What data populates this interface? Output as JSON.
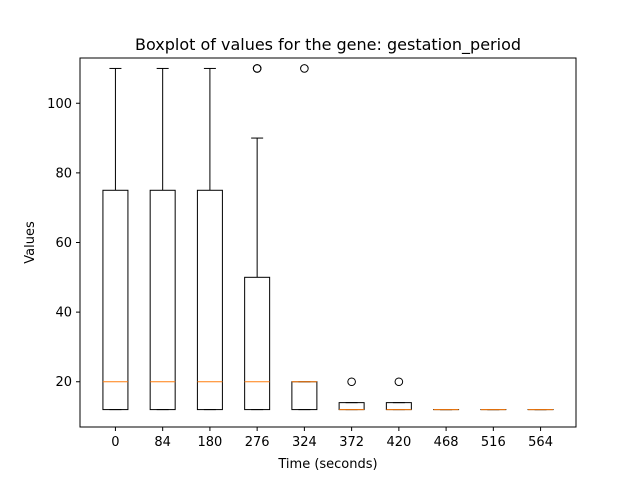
{
  "chart_data": {
    "type": "box",
    "title": "Boxplot of values for the gene: gestation_period",
    "xlabel": "Time (seconds)",
    "ylabel": "Values",
    "ylim": [
      7,
      113
    ],
    "yticks": [
      20,
      40,
      60,
      80,
      100
    ],
    "grid": false,
    "categories": [
      "0",
      "84",
      "180",
      "276",
      "324",
      "372",
      "420",
      "468",
      "516",
      "564"
    ],
    "boxes": [
      {
        "whisker_low": 12,
        "q1": 12,
        "median": 20,
        "q3": 75,
        "whisker_high": 110,
        "outliers": []
      },
      {
        "whisker_low": 12,
        "q1": 12,
        "median": 20,
        "q3": 75,
        "whisker_high": 110,
        "outliers": []
      },
      {
        "whisker_low": 12,
        "q1": 12,
        "median": 20,
        "q3": 75,
        "whisker_high": 110,
        "outliers": []
      },
      {
        "whisker_low": 12,
        "q1": 12,
        "median": 20,
        "q3": 50,
        "whisker_high": 90,
        "outliers": [
          110,
          110
        ]
      },
      {
        "whisker_low": 12,
        "q1": 12,
        "median": 20,
        "q3": 20,
        "whisker_high": 20,
        "outliers": [
          110
        ]
      },
      {
        "whisker_low": 12,
        "q1": 12,
        "median": 12,
        "q3": 14,
        "whisker_high": 14,
        "outliers": [
          20
        ]
      },
      {
        "whisker_low": 12,
        "q1": 12,
        "median": 12,
        "q3": 14,
        "whisker_high": 14,
        "outliers": [
          20
        ]
      },
      {
        "whisker_low": 12,
        "q1": 12,
        "median": 12,
        "q3": 12,
        "whisker_high": 12,
        "outliers": []
      },
      {
        "whisker_low": 12,
        "q1": 12,
        "median": 12,
        "q3": 12,
        "whisker_high": 12,
        "outliers": []
      },
      {
        "whisker_low": 12,
        "q1": 12,
        "median": 12,
        "q3": 12,
        "whisker_high": 12,
        "outliers": []
      }
    ],
    "colors": {
      "box": "#000000",
      "median": "#ff7f0e",
      "outlier": "#000000"
    }
  }
}
